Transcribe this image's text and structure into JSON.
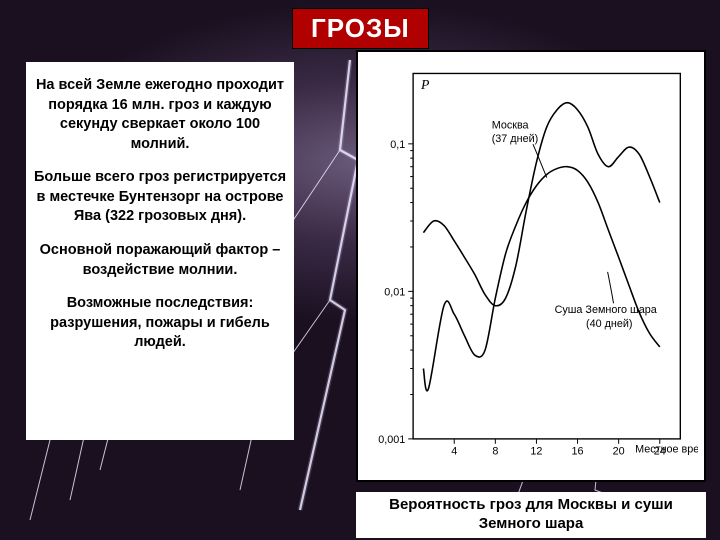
{
  "title": "ГРОЗЫ",
  "text": {
    "p1": "На всей Земле ежегодно проходит порядка 16 млн. гроз и каждую секунду сверкает около 100 молний.",
    "p2": "Больше всего гроз регистрируется в местечке Бунтензорг на острове Ява (322 грозовых дня).",
    "p3": "Основной поражающий фактор – воздействие молнии.",
    "p4": "Возможные последствия: разрушения, пожары и гибель людей."
  },
  "caption": "Вероятность гроз для Москвы и суши Земного шара",
  "chart": {
    "type": "line",
    "y_label": "P",
    "x_label": "Местное время",
    "y_scale": "log",
    "y_ticks": [
      0.001,
      0.01,
      0.1
    ],
    "y_tick_labels": [
      "0,001",
      "0,01",
      "0,1"
    ],
    "ylim": [
      0.001,
      0.3
    ],
    "x_ticks": [
      4,
      8,
      12,
      16,
      20,
      24
    ],
    "xlim": [
      0,
      26
    ],
    "plot_bg": "#ffffff",
    "axis_color": "#000000",
    "curve_color": "#000000",
    "curve_width": 1.6,
    "annotations": [
      {
        "text1": "Москва",
        "text2": "(37 дней)"
      },
      {
        "text1": "Суша Земного шара",
        "text2": "(40 дней)"
      }
    ],
    "series": [
      {
        "name": "moscow",
        "points": [
          [
            1,
            0.025
          ],
          [
            2,
            0.03
          ],
          [
            3,
            0.028
          ],
          [
            4,
            0.022
          ],
          [
            5,
            0.017
          ],
          [
            6,
            0.013
          ],
          [
            7,
            0.0095
          ],
          [
            8,
            0.008
          ],
          [
            9,
            0.009
          ],
          [
            10,
            0.015
          ],
          [
            11,
            0.035
          ],
          [
            12,
            0.075
          ],
          [
            13,
            0.13
          ],
          [
            14,
            0.17
          ],
          [
            15,
            0.19
          ],
          [
            16,
            0.17
          ],
          [
            17,
            0.13
          ],
          [
            18,
            0.085
          ],
          [
            19,
            0.07
          ],
          [
            20,
            0.082
          ],
          [
            21,
            0.095
          ],
          [
            22,
            0.085
          ],
          [
            23,
            0.06
          ],
          [
            24,
            0.04
          ]
        ]
      },
      {
        "name": "earth_land",
        "points": [
          [
            1,
            0.003
          ],
          [
            1.5,
            0.0022
          ],
          [
            3,
            0.008
          ],
          [
            4,
            0.007
          ],
          [
            5,
            0.005
          ],
          [
            6,
            0.0037
          ],
          [
            7,
            0.004
          ],
          [
            8,
            0.009
          ],
          [
            9,
            0.018
          ],
          [
            10,
            0.028
          ],
          [
            11,
            0.04
          ],
          [
            12,
            0.052
          ],
          [
            13,
            0.062
          ],
          [
            14,
            0.068
          ],
          [
            15,
            0.07
          ],
          [
            16,
            0.066
          ],
          [
            17,
            0.055
          ],
          [
            18,
            0.04
          ],
          [
            19,
            0.026
          ],
          [
            20,
            0.017
          ],
          [
            21,
            0.011
          ],
          [
            22,
            0.0072
          ],
          [
            23,
            0.0052
          ],
          [
            24,
            0.0042
          ]
        ]
      }
    ]
  }
}
